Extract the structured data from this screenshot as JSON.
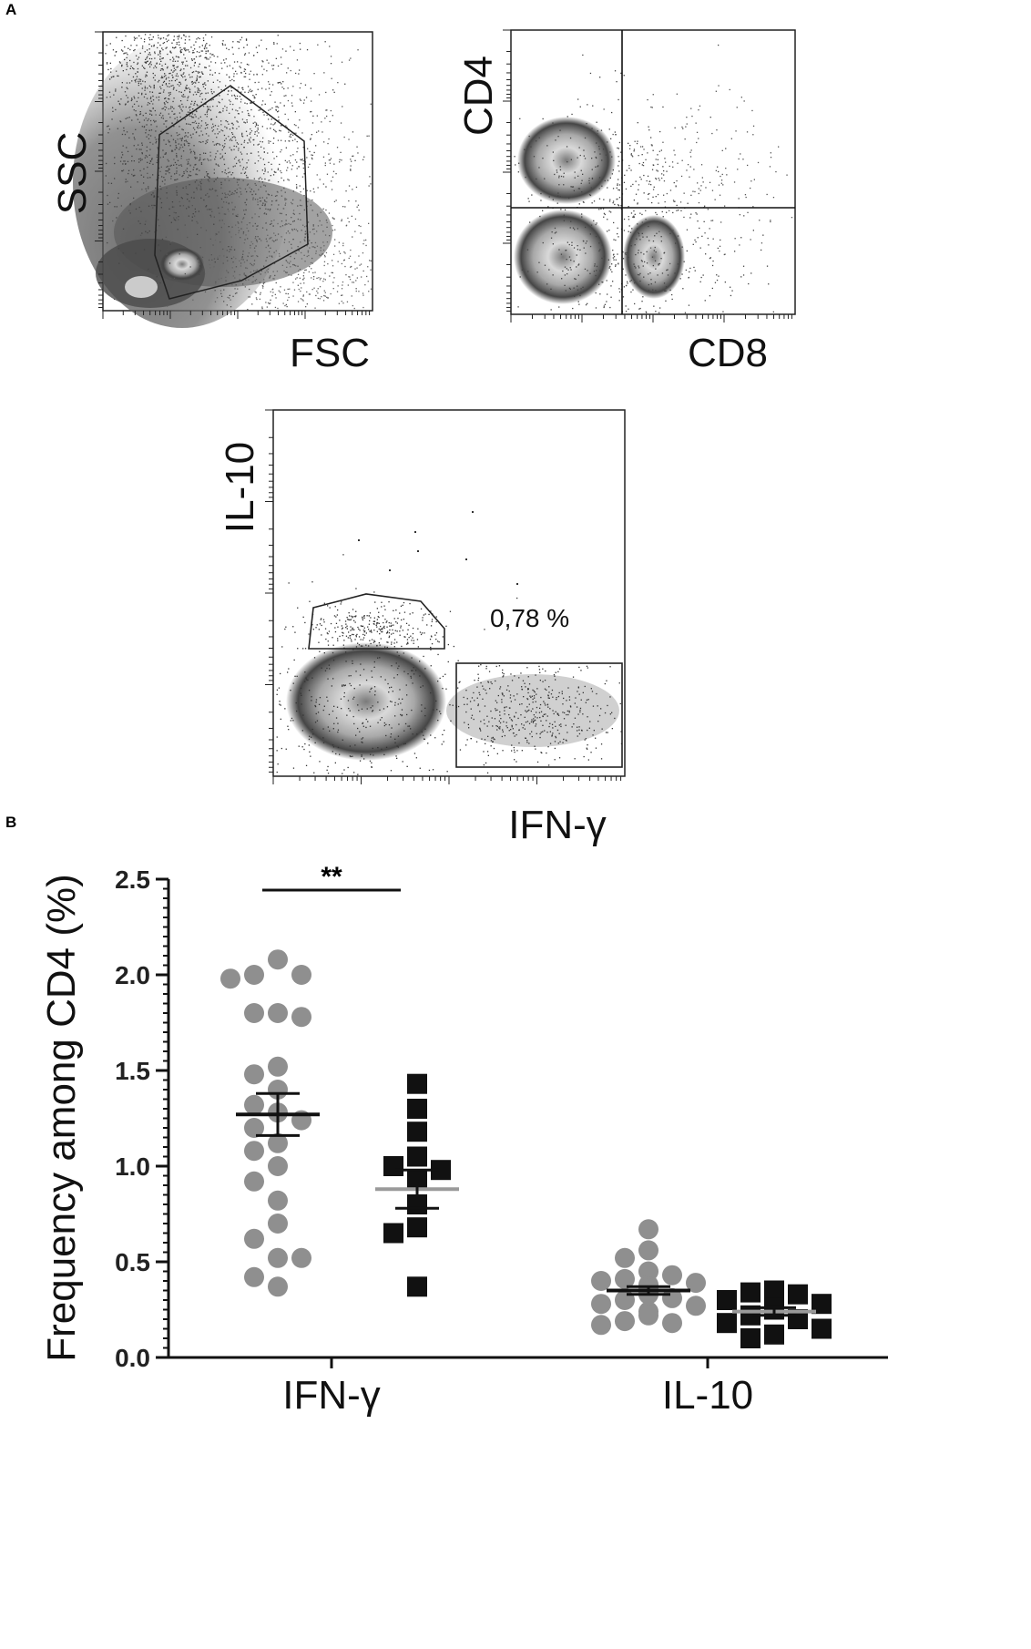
{
  "panel_a": {
    "label": "A",
    "plots": [
      {
        "xlabel": "FSC",
        "ylabel": "SSC"
      },
      {
        "xlabel": "CD8",
        "ylabel": "CD4"
      },
      {
        "xlabel": "IFN-γ",
        "ylabel": "IL-10",
        "gate_label": "0,78 %"
      }
    ]
  },
  "panel_b": {
    "label": "B"
  },
  "colors": {
    "group1": "#8f8f8f",
    "group2": "#111111",
    "mean_line_group2": "#9a9a9a"
  },
  "chart_data": {
    "type": "scatter",
    "title": "",
    "ylabel": "Frequency among CD4 (%)",
    "xlabel": "",
    "categories": [
      "IFN-γ",
      "IL-10"
    ],
    "yticks": [
      "0.0",
      "0.5",
      "1.0",
      "1.5",
      "2.0",
      "2.5"
    ],
    "ylim": [
      0,
      2.5
    ],
    "significance": {
      "label": "**",
      "between": "IFN-γ group 1 vs group 2"
    },
    "series": [
      {
        "marker": "circle",
        "color": "#8f8f8f",
        "points": {
          "IFN-γ": [
            2.08,
            2.0,
            2.0,
            1.98,
            1.8,
            1.8,
            1.78,
            1.52,
            1.48,
            1.4,
            1.32,
            1.28,
            1.24,
            1.2,
            1.12,
            1.08,
            1.0,
            0.92,
            0.82,
            0.7,
            0.62,
            0.52,
            0.52,
            0.42,
            0.37
          ],
          "IL-10": [
            0.67,
            0.56,
            0.52,
            0.45,
            0.43,
            0.41,
            0.4,
            0.39,
            0.38,
            0.37,
            0.36,
            0.35,
            0.34,
            0.33,
            0.31,
            0.3,
            0.28,
            0.27,
            0.24,
            0.22,
            0.19,
            0.18,
            0.17
          ]
        },
        "mean": {
          "IFN-γ": 1.27,
          "IL-10": 0.35
        },
        "sem": {
          "IFN-γ": 0.11,
          "IL-10": 0.02
        }
      },
      {
        "marker": "square",
        "color": "#111111",
        "points": {
          "IFN-γ": [
            1.43,
            1.3,
            1.18,
            1.05,
            1.0,
            0.98,
            0.93,
            0.8,
            0.68,
            0.65,
            0.37
          ],
          "IL-10": [
            0.35,
            0.34,
            0.33,
            0.3,
            0.28,
            0.26,
            0.25,
            0.22,
            0.2,
            0.18,
            0.15,
            0.12,
            0.1
          ]
        },
        "mean": {
          "IFN-γ": 0.88,
          "IL-10": 0.24
        },
        "sem": {
          "IFN-γ": 0.1,
          "IL-10": 0.02
        }
      }
    ]
  }
}
